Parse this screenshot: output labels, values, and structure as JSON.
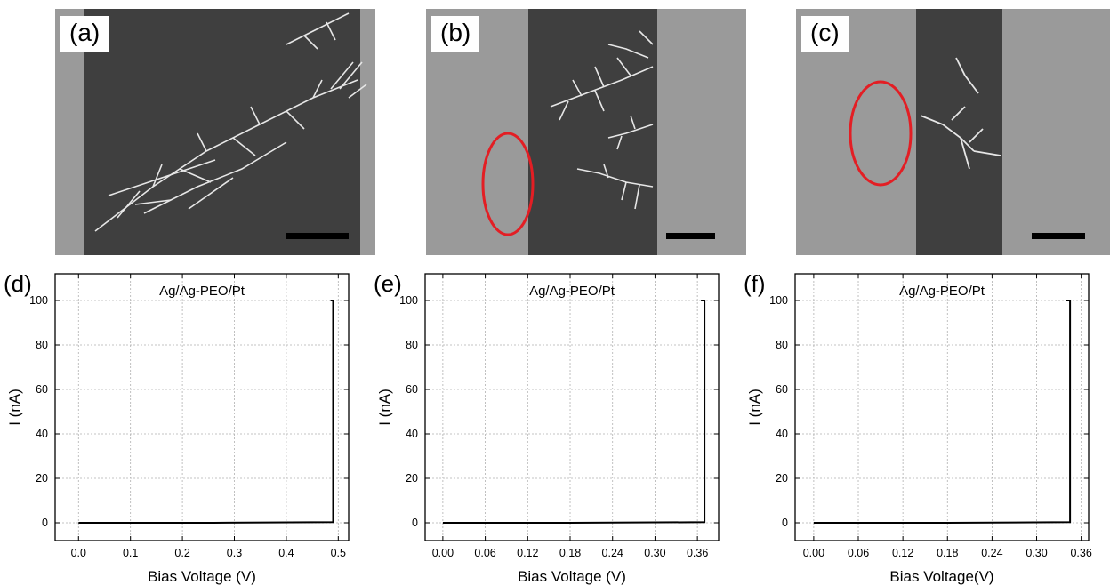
{
  "sem_panels": [
    {
      "id": "a",
      "label": "(a)",
      "ellipse": false
    },
    {
      "id": "b",
      "label": "(b)",
      "ellipse": true
    },
    {
      "id": "c",
      "label": "(c)",
      "ellipse": true
    }
  ],
  "colors": {
    "electrode": "#9a9a9a",
    "gap": "#3f3f3f",
    "dendrite": "#e6e6e6",
    "scale_bar": "#000000",
    "ellipse": "#e31e24",
    "grid": "#b0b0b0",
    "trace": "#000000"
  },
  "chart_data": [
    {
      "id": "d",
      "panel_label": "(d)",
      "type": "line",
      "title": "Ag/Ag-PEO/Pt",
      "xlabel": "Bias Voltage (V)",
      "ylabel": "I (nA)",
      "xlim": [
        -0.045,
        0.52
      ],
      "ylim": [
        -8,
        112
      ],
      "xticks": [
        0.0,
        0.1,
        0.2,
        0.3,
        0.4,
        0.5
      ],
      "xtick_labels": [
        "0.0",
        "0.1",
        "0.2",
        "0.3",
        "0.4",
        "0.5"
      ],
      "yticks": [
        0,
        20,
        40,
        60,
        80,
        100
      ],
      "ytick_labels": [
        "0",
        "20",
        "40",
        "60",
        "80",
        "100"
      ],
      "grid": true,
      "x": [
        0.0,
        0.26,
        0.49,
        0.49,
        0.485
      ],
      "y": [
        0,
        0,
        0.3,
        100,
        100
      ]
    },
    {
      "id": "e",
      "panel_label": "(e)",
      "type": "line",
      "title": "Ag/Ag-PEO/Pt",
      "xlabel": "Bias Voltage (V)",
      "ylabel": "I (nA)",
      "xlim": [
        -0.025,
        0.39
      ],
      "ylim": [
        -8,
        112
      ],
      "xticks": [
        0.0,
        0.06,
        0.12,
        0.18,
        0.24,
        0.3,
        0.36
      ],
      "xtick_labels": [
        "0.00",
        "0.06",
        "0.12",
        "0.18",
        "0.24",
        "0.30",
        "0.36"
      ],
      "yticks": [
        0,
        20,
        40,
        60,
        80,
        100
      ],
      "ytick_labels": [
        "0",
        "20",
        "40",
        "60",
        "80",
        "100"
      ],
      "grid": true,
      "x": [
        0.0,
        0.18,
        0.37,
        0.37,
        0.365
      ],
      "y": [
        0,
        0,
        0.3,
        100,
        100
      ]
    },
    {
      "id": "f",
      "panel_label": "(f)",
      "type": "line",
      "title": "Ag/Ag-PEO/Pt",
      "xlabel": "Bias Voltage(V)",
      "ylabel": "I (nA)",
      "xlim": [
        -0.025,
        0.37
      ],
      "ylim": [
        -8,
        112
      ],
      "xticks": [
        0.0,
        0.06,
        0.12,
        0.18,
        0.24,
        0.3,
        0.36
      ],
      "xtick_labels": [
        "0.00",
        "0.06",
        "0.12",
        "0.18",
        "0.24",
        "0.30",
        "0.36"
      ],
      "yticks": [
        0,
        20,
        40,
        60,
        80,
        100
      ],
      "ytick_labels": [
        "0",
        "20",
        "40",
        "60",
        "80",
        "100"
      ],
      "grid": true,
      "x": [
        0.0,
        0.18,
        0.345,
        0.345,
        0.34
      ],
      "y": [
        0,
        0,
        0.3,
        100,
        100
      ]
    }
  ]
}
